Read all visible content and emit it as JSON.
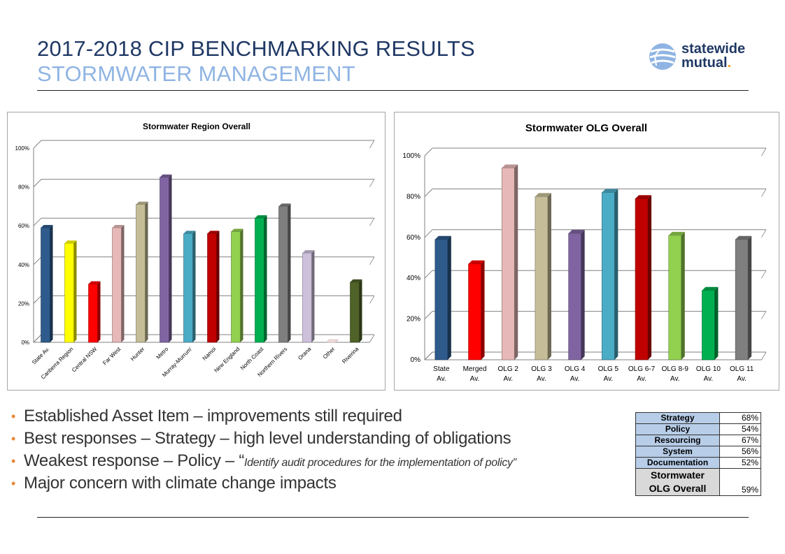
{
  "header": {
    "title": "2017-2018 CIP BENCHMARKING RESULTS",
    "subtitle": "STORMWATER MANAGEMENT"
  },
  "logo": {
    "line1": "statewide",
    "line2": "mutual",
    "dot": ".",
    "icon": "globe-icon"
  },
  "colors": {
    "title": "#1f3864",
    "subtitle": "#8fb4e3",
    "bullet": "#e8883a"
  },
  "chart_data": [
    {
      "type": "bar",
      "title": "Stormwater Region Overall",
      "categories": [
        "State Av.",
        "Canberra Region",
        "Central NSW",
        "Far West",
        "Hunter",
        "Metro",
        "Murray-Murrum'",
        "Namoi",
        "New England",
        "North Coast",
        "Northern Rivers",
        "Orana",
        "Other",
        "Riverina"
      ],
      "values": [
        59,
        51,
        30,
        59,
        71,
        85,
        56,
        56,
        57,
        64,
        70,
        46,
        0,
        31
      ],
      "colors": [
        "#2e5b8c",
        "#ffff00",
        "#ff0000",
        "#e6b8b7",
        "#c4bd97",
        "#8064a2",
        "#4bacc6",
        "#c00000",
        "#92d050",
        "#00b050",
        "#7f7f7f",
        "#ccc0da",
        "#f2dcdb",
        "#4f6228"
      ],
      "yticks": [
        "0%",
        "20%",
        "40%",
        "60%",
        "80%",
        "100%"
      ],
      "ylim": [
        0,
        100
      ],
      "grid": true
    },
    {
      "type": "bar",
      "title": "Stormwater OLG Overall",
      "categories": [
        "State Av.",
        "Merged Av.",
        "OLG 2 Av.",
        "OLG 3 Av.",
        "OLG 4 Av.",
        "OLG 5 Av.",
        "OLG 6-7 Av.",
        "OLG 8-9 Av.",
        "OLG 10 Av.",
        "OLG 11 Av."
      ],
      "values": [
        59,
        47,
        94,
        80,
        62,
        82,
        79,
        61,
        34,
        59
      ],
      "colors": [
        "#2e5b8c",
        "#ff0000",
        "#e6b8b7",
        "#c4bd97",
        "#8064a2",
        "#4bacc6",
        "#c00000",
        "#92d050",
        "#00b050",
        "#7f7f7f"
      ],
      "yticks": [
        "0%",
        "20%",
        "40%",
        "60%",
        "80%",
        "100%"
      ],
      "ylim": [
        0,
        100
      ],
      "grid": true
    }
  ],
  "bullets": [
    {
      "text": "Established Asset Item – improvements still required"
    },
    {
      "text": "Best responses – Strategy – high level understanding of obligations"
    },
    {
      "text": "Weakest response – Policy – “",
      "quote": "Identify audit procedures for the implementation of policy”"
    },
    {
      "text": "Major concern with climate change impacts"
    }
  ],
  "summary_table": {
    "rows": [
      {
        "label": "Strategy",
        "value": "68%"
      },
      {
        "label": "Policy",
        "value": "54%"
      },
      {
        "label": "Resourcing",
        "value": "67%"
      },
      {
        "label": "System",
        "value": "56%"
      },
      {
        "label": "Documentation",
        "value": "52%"
      }
    ],
    "overall_label_1": "Stormwater",
    "overall_label_2": "OLG Overall",
    "overall_value": "59%"
  }
}
